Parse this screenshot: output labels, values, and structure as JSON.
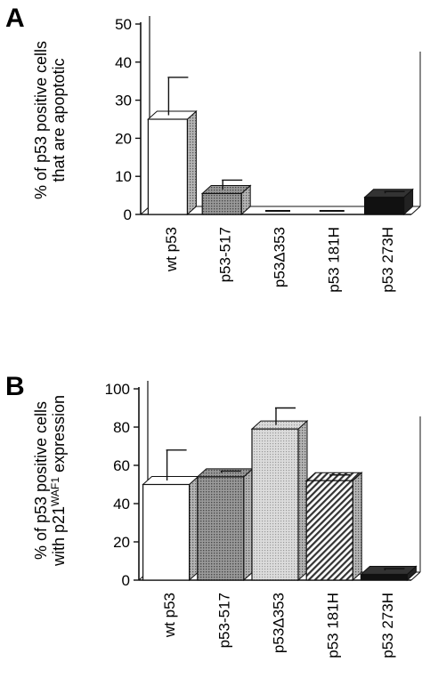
{
  "figure": {
    "panel_a_letter": "A",
    "panel_b_letter": "B"
  },
  "chart_data": [
    {
      "type": "bar",
      "panel": "A",
      "ylabel_lines": [
        "% of p53 positive cells",
        "that are apoptotic"
      ],
      "categories": [
        "wt p53",
        "p53-517",
        "p53Δ353",
        "p53 181H",
        "p53 273H"
      ],
      "values": [
        25,
        5.5,
        0,
        0,
        4.5
      ],
      "errors": [
        11,
        3.5,
        0,
        0,
        1.5
      ],
      "ylim": [
        0,
        50
      ],
      "yticks": [
        0,
        10,
        20,
        30,
        40,
        50
      ],
      "patterns": [
        "white",
        "dots",
        "white",
        "white",
        "black"
      ],
      "grid": false
    },
    {
      "type": "bar",
      "panel": "B",
      "ylabel_lines": [
        "% of p53 positive cells",
        "with p21",
        "WAF1",
        " expression"
      ],
      "categories": [
        "wt p53",
        "p53-517",
        "p53Δ353",
        "p53 181H",
        "p53 273H"
      ],
      "values": [
        50,
        54,
        79,
        52,
        3
      ],
      "errors": [
        18,
        3,
        11,
        3,
        3
      ],
      "ylim": [
        0,
        100
      ],
      "yticks": [
        0,
        20,
        40,
        60,
        80,
        100
      ],
      "patterns": [
        "white",
        "dots",
        "lightdots",
        "hatch",
        "black"
      ],
      "grid": false
    }
  ]
}
